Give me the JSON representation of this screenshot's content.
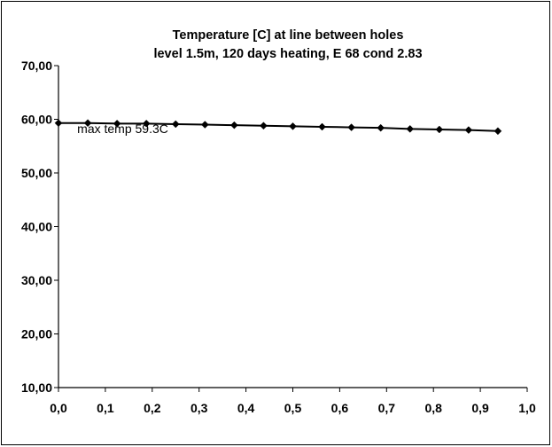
{
  "chart_data": {
    "type": "line",
    "title": "Temperature [C] at line between holes",
    "subtitle": "level 1.5m, 120 days heating, E 68 cond 2.83",
    "xlabel": "",
    "ylabel": "",
    "xlim": [
      0.0,
      1.0
    ],
    "ylim": [
      10.0,
      70.0
    ],
    "x_ticks": [
      "0,0",
      "0,1",
      "0,2",
      "0,3",
      "0,4",
      "0,5",
      "0,6",
      "0,7",
      "0,8",
      "0,9",
      "1,0"
    ],
    "y_ticks": [
      "10,00",
      "20,00",
      "30,00",
      "40,00",
      "50,00",
      "60,00",
      "70,00"
    ],
    "grid": false,
    "legend": "none",
    "line_color": "#000000",
    "series": [
      {
        "x": [
          0.0,
          0.0625,
          0.125,
          0.1875,
          0.25,
          0.3125,
          0.375,
          0.4375,
          0.5,
          0.5625,
          0.625,
          0.6875,
          0.75,
          0.8125,
          0.875,
          0.9375
        ],
        "y": [
          59.3,
          59.3,
          59.2,
          59.2,
          59.1,
          59.0,
          58.9,
          58.8,
          58.7,
          58.6,
          58.5,
          58.4,
          58.2,
          58.1,
          58.0,
          57.8
        ]
      }
    ],
    "annotations": [
      {
        "text": "max temp 59.3C",
        "x": 0.04,
        "y": 57.4
      }
    ]
  }
}
